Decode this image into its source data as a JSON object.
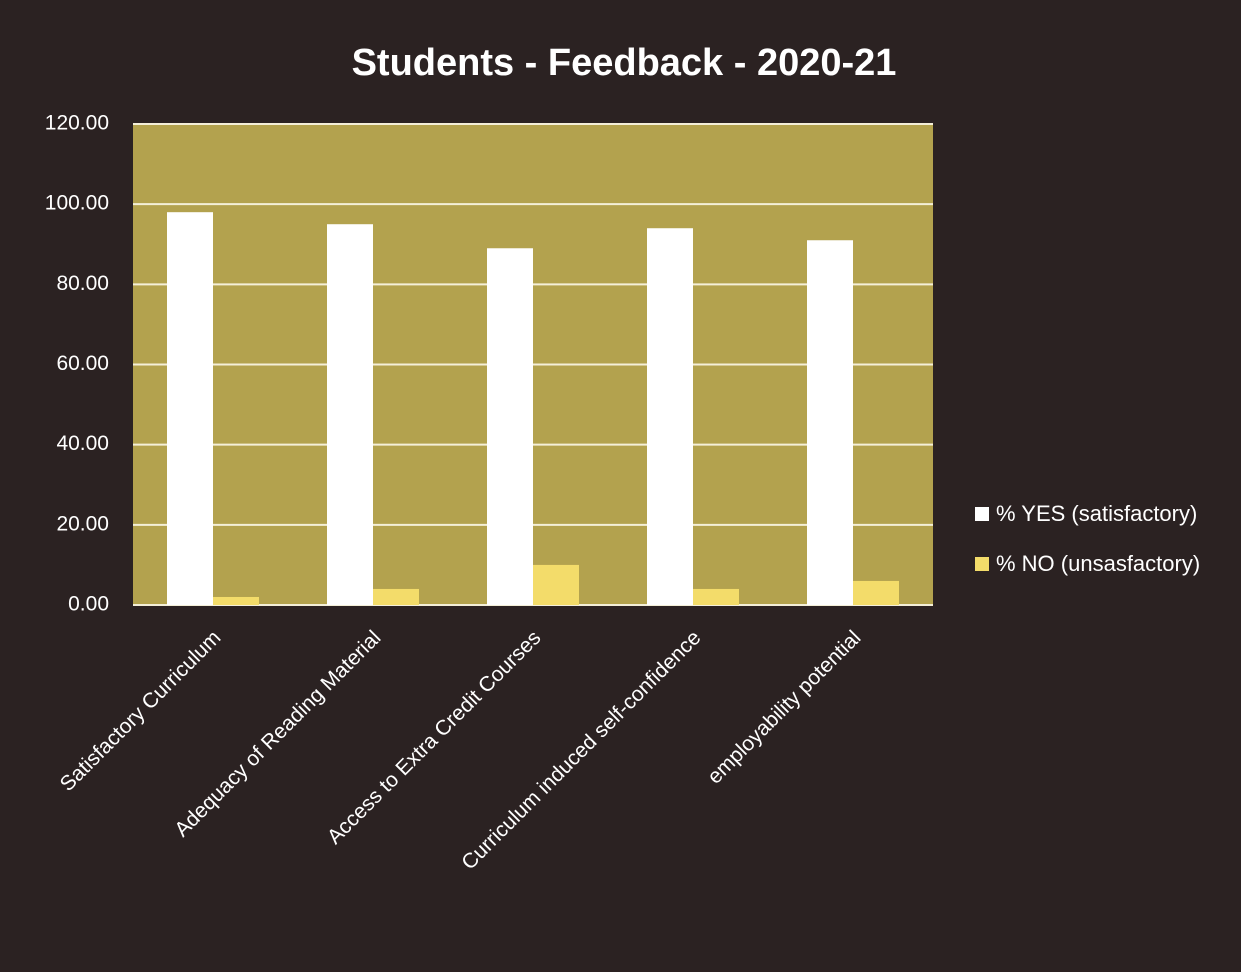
{
  "chart_data": {
    "type": "bar",
    "title": "Students - Feedback - 2020-21",
    "categories": [
      "Satisfactory Curriculum",
      "Adequacy of Reading Material",
      "Access to Extra Credit Courses",
      "Curriculum induced self-confidence",
      "employability potential"
    ],
    "series": [
      {
        "name": "% YES (satisfactory)",
        "color": "#ffffff",
        "values": [
          98,
          95,
          89,
          94,
          91
        ]
      },
      {
        "name": "%  NO (unsasfactory)",
        "color": "#f3dc6a",
        "values": [
          2,
          4,
          10,
          4,
          6
        ]
      }
    ],
    "ylim": [
      0,
      120
    ],
    "yticks": [
      {
        "value": 0,
        "label": "0.00"
      },
      {
        "value": 20,
        "label": "20.00"
      },
      {
        "value": 40,
        "label": "40.00"
      },
      {
        "value": 60,
        "label": "60.00"
      },
      {
        "value": 80,
        "label": "80.00"
      },
      {
        "value": 100,
        "label": "100.00"
      },
      {
        "value": 120,
        "label": "120.00"
      }
    ],
    "grid": true,
    "legend": "right"
  }
}
